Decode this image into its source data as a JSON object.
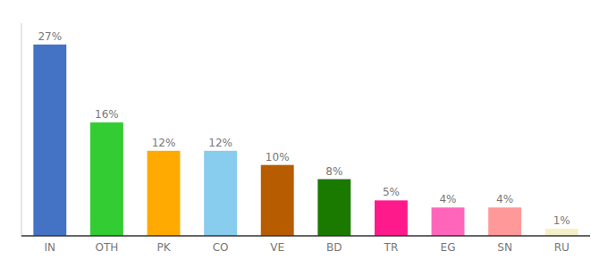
{
  "chart_data": {
    "type": "bar",
    "categories": [
      "IN",
      "OTH",
      "PK",
      "CO",
      "VE",
      "BD",
      "TR",
      "EG",
      "SN",
      "RU"
    ],
    "values": [
      27,
      16,
      12,
      12,
      10,
      8,
      5,
      4,
      4,
      1
    ],
    "value_labels": [
      "27%",
      "16%",
      "12%",
      "12%",
      "10%",
      "8%",
      "5%",
      "4%",
      "4%",
      "1%"
    ],
    "colors": [
      "#4472c4",
      "#33cc33",
      "#ffaa00",
      "#88ccee",
      "#b85c00",
      "#1a7a00",
      "#ff1a8c",
      "#ff66bb",
      "#ff9999",
      "#f5f0c8"
    ],
    "ylim": [
      0,
      30
    ],
    "grid": false,
    "data_labels": true,
    "tick_labels": "x"
  }
}
